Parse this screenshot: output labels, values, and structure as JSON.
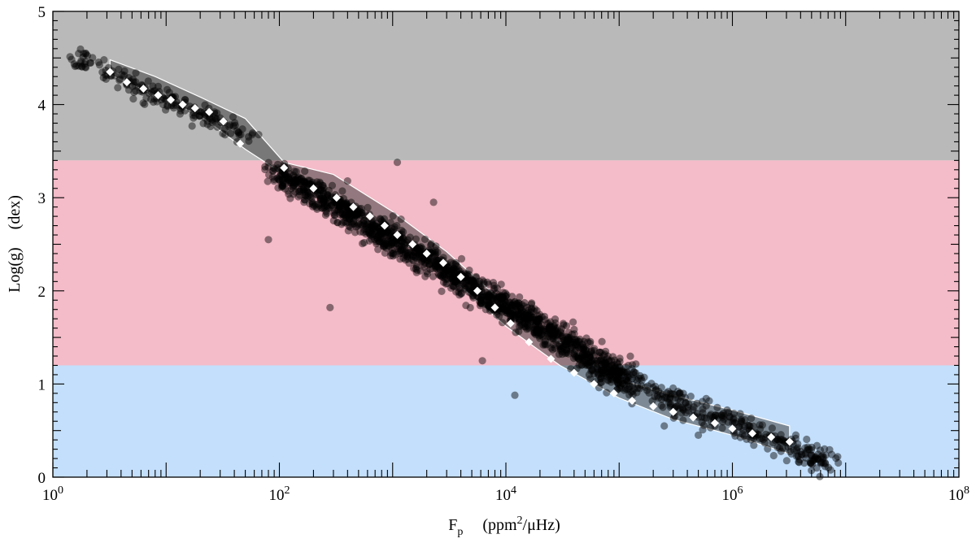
{
  "chart_data": {
    "type": "scatter",
    "title": "",
    "xlabel": {
      "main": "F",
      "sub": "p",
      "units": "(ppm",
      "sup": "2",
      "tail": "/μHz)"
    },
    "ylabel": {
      "main": "Log(g)",
      "units": "(dex)"
    },
    "xscale": "log",
    "xlim": [
      1,
      100000000
    ],
    "ylim": [
      0,
      5
    ],
    "x_ticks": [
      {
        "value": 1,
        "base": "10",
        "exp": "0"
      },
      {
        "value": 100,
        "base": "10",
        "exp": "2"
      },
      {
        "value": 10000,
        "base": "10",
        "exp": "4"
      },
      {
        "value": 1000000,
        "base": "10",
        "exp": "6"
      },
      {
        "value": 100000000,
        "base": "10",
        "exp": "8"
      }
    ],
    "y_ticks": [
      {
        "value": 0,
        "label": "0"
      },
      {
        "value": 1,
        "label": "1"
      },
      {
        "value": 2,
        "label": "2"
      },
      {
        "value": 3,
        "label": "3"
      },
      {
        "value": 4,
        "label": "4"
      },
      {
        "value": 5,
        "label": "5"
      }
    ],
    "grid": false,
    "bands": [
      {
        "y0": 3.4,
        "y1": 5.0,
        "color": "#b9b9b9"
      },
      {
        "y0": 1.2,
        "y1": 3.4,
        "color": "#f4bbc8"
      },
      {
        "y0": 0.0,
        "y1": 1.2,
        "color": "#c3dffb"
      }
    ],
    "colors": {
      "points": "#000000",
      "points_opacity": 0.45,
      "medians": "#ffffff",
      "envelope": "#ffffff"
    },
    "median_series": {
      "x": [
        3.2,
        4.5,
        6.3,
        8.5,
        11,
        14,
        18,
        24,
        32,
        45,
        110,
        200,
        320,
        450,
        630,
        850,
        1100,
        1500,
        2000,
        2800,
        4000,
        5600,
        8000,
        11000,
        16000,
        25000,
        40000,
        60000,
        90000,
        130000,
        200000,
        300000,
        450000,
        700000,
        1000000,
        1500000,
        2200000,
        3200000
      ],
      "y": [
        4.35,
        4.24,
        4.17,
        4.1,
        4.05,
        4.0,
        3.96,
        3.92,
        3.82,
        3.58,
        3.32,
        3.1,
        3.0,
        2.9,
        2.8,
        2.7,
        2.6,
        2.5,
        2.4,
        2.3,
        2.15,
        2.0,
        1.82,
        1.65,
        1.45,
        1.27,
        1.12,
        1.0,
        0.9,
        0.82,
        0.76,
        0.7,
        0.64,
        0.58,
        0.52,
        0.47,
        0.43,
        0.38
      ]
    },
    "envelope": {
      "upper": [
        [
          3.2,
          4.48
        ],
        [
          8,
          4.3
        ],
        [
          20,
          4.08
        ],
        [
          50,
          3.85
        ],
        [
          110,
          3.38
        ],
        [
          300,
          3.25
        ],
        [
          1000,
          2.85
        ],
        [
          3000,
          2.42
        ],
        [
          10000,
          1.85
        ],
        [
          30000,
          1.45
        ],
        [
          100000,
          1.05
        ],
        [
          300000,
          0.88
        ],
        [
          1000000,
          0.72
        ],
        [
          3200000,
          0.55
        ]
      ],
      "lower": [
        [
          3.2,
          4.32
        ],
        [
          8,
          4.1
        ],
        [
          20,
          3.88
        ],
        [
          50,
          3.52
        ],
        [
          110,
          3.25
        ],
        [
          300,
          2.95
        ],
        [
          1000,
          2.6
        ],
        [
          3000,
          2.18
        ],
        [
          10000,
          1.62
        ],
        [
          30000,
          1.2
        ],
        [
          100000,
          0.85
        ],
        [
          300000,
          0.62
        ],
        [
          1000000,
          0.45
        ],
        [
          3200000,
          0.25
        ]
      ]
    },
    "scatter_clusters": [
      {
        "x0": 1.6,
        "x1": 55,
        "y0": 4.5,
        "y1": 3.65,
        "spread": 0.1,
        "n": 180
      },
      {
        "x0": 90,
        "x1": 120000,
        "y0": 3.3,
        "y1": 1.05,
        "spread": 0.13,
        "n": 1400
      },
      {
        "x0": 60000,
        "x1": 8000000,
        "y0": 1.15,
        "y1": 0.15,
        "spread": 0.12,
        "n": 320
      }
    ],
    "outliers": [
      [
        80,
        2.55
      ],
      [
        280,
        1.82
      ],
      [
        400,
        3.18
      ],
      [
        1100,
        3.38
      ],
      [
        2300,
        2.95
      ],
      [
        6200,
        1.25
      ],
      [
        12000,
        0.88
      ],
      [
        18000,
        1.55
      ],
      [
        26000,
        1.58
      ],
      [
        85000,
        1.02
      ],
      [
        250000,
        0.55
      ],
      [
        500000,
        0.45
      ],
      [
        950000,
        0.65
      ],
      [
        8500000,
        0.22
      ]
    ]
  }
}
